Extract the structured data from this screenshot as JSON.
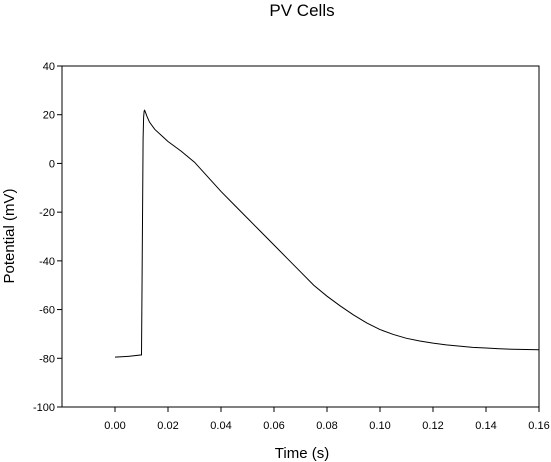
{
  "chart_data": {
    "type": "line",
    "title": "PV Cells",
    "xlabel": "Time (s)",
    "ylabel": "Potential (mV)",
    "xlim": [
      -0.02,
      0.16
    ],
    "ylim": [
      -100,
      40
    ],
    "xticks": [
      0.0,
      0.02,
      0.04,
      0.06,
      0.08,
      0.1,
      0.12,
      0.14,
      0.16
    ],
    "xtick_labels": [
      "0.00",
      "0.02",
      "0.04",
      "0.06",
      "0.08",
      "0.10",
      "0.12",
      "0.14",
      "0.16"
    ],
    "yticks": [
      -100,
      -80,
      -60,
      -40,
      -20,
      0,
      20,
      40
    ],
    "ytick_labels": [
      "-100",
      "-80",
      "-60",
      "-40",
      "-20",
      "0",
      "20",
      "40"
    ],
    "grid": false,
    "line_color": "#000000",
    "series": [
      {
        "x": [
          0.0,
          0.005,
          0.01,
          0.0102,
          0.0104,
          0.0106,
          0.0108,
          0.011,
          0.0112,
          0.0115,
          0.012,
          0.013,
          0.015,
          0.018,
          0.02,
          0.025,
          0.03,
          0.035,
          0.04,
          0.045,
          0.05,
          0.055,
          0.06,
          0.065,
          0.07,
          0.075,
          0.08,
          0.085,
          0.09,
          0.095,
          0.1,
          0.105,
          0.11,
          0.115,
          0.12,
          0.125,
          0.13,
          0.135,
          0.14,
          0.145,
          0.15,
          0.155,
          0.16
        ],
        "y": [
          -79.5,
          -79.2,
          -78.6,
          -50,
          -20,
          10,
          19,
          21.5,
          21.8,
          21.0,
          19.5,
          17.0,
          14.0,
          11.0,
          9.0,
          5.0,
          0.5,
          -5.5,
          -11.5,
          -17.0,
          -22.5,
          -28.0,
          -33.5,
          -39.0,
          -44.5,
          -50.0,
          -54.5,
          -58.5,
          -62.2,
          -65.5,
          -68.2,
          -70.2,
          -71.8,
          -72.9,
          -73.8,
          -74.5,
          -75.0,
          -75.5,
          -75.8,
          -76.1,
          -76.3,
          -76.4,
          -76.5
        ]
      }
    ]
  }
}
